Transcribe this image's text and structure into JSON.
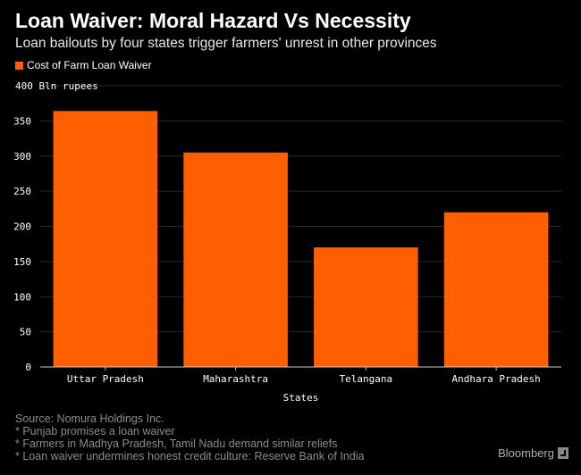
{
  "header": {
    "title": "Loan Waiver: Moral Hazard Vs Necessity",
    "subtitle": "Loan bailouts by four states trigger farmers' unrest in other provinces"
  },
  "colors": {
    "bar": "#ff5f00",
    "background": "#000000",
    "grid": "#2a2a2a"
  },
  "chart_data": {
    "type": "bar",
    "title": "Loan Waiver: Moral Hazard Vs Necessity",
    "subtitle": "Loan bailouts by four states trigger farmers' unrest in other provinces",
    "xlabel": "States",
    "ylabel": "",
    "y_unit_label": "400 Bln rupees",
    "categories": [
      "Uttar Pradesh",
      "Maharashtra",
      "Telangana",
      "Andhara Pradesh"
    ],
    "series": [
      {
        "name": "Cost of Farm Loan Waiver",
        "values": [
          364,
          305,
          170,
          220
        ]
      }
    ],
    "ylim": [
      0,
      400
    ],
    "yticks": [
      0,
      50,
      100,
      150,
      200,
      250,
      300,
      350
    ],
    "grid": true,
    "legend_position": "top-left"
  },
  "footer": {
    "source": "Source: Nomura Holdings Inc.",
    "notes": [
      "* Punjab promises a loan waiver",
      "* Farmers in Madhya Pradesh, Tamil Nadu demand similar reliefs",
      "* Loan waiver undermines honest credit culture: Reserve Bank of India"
    ],
    "brand": "Bloomberg"
  }
}
